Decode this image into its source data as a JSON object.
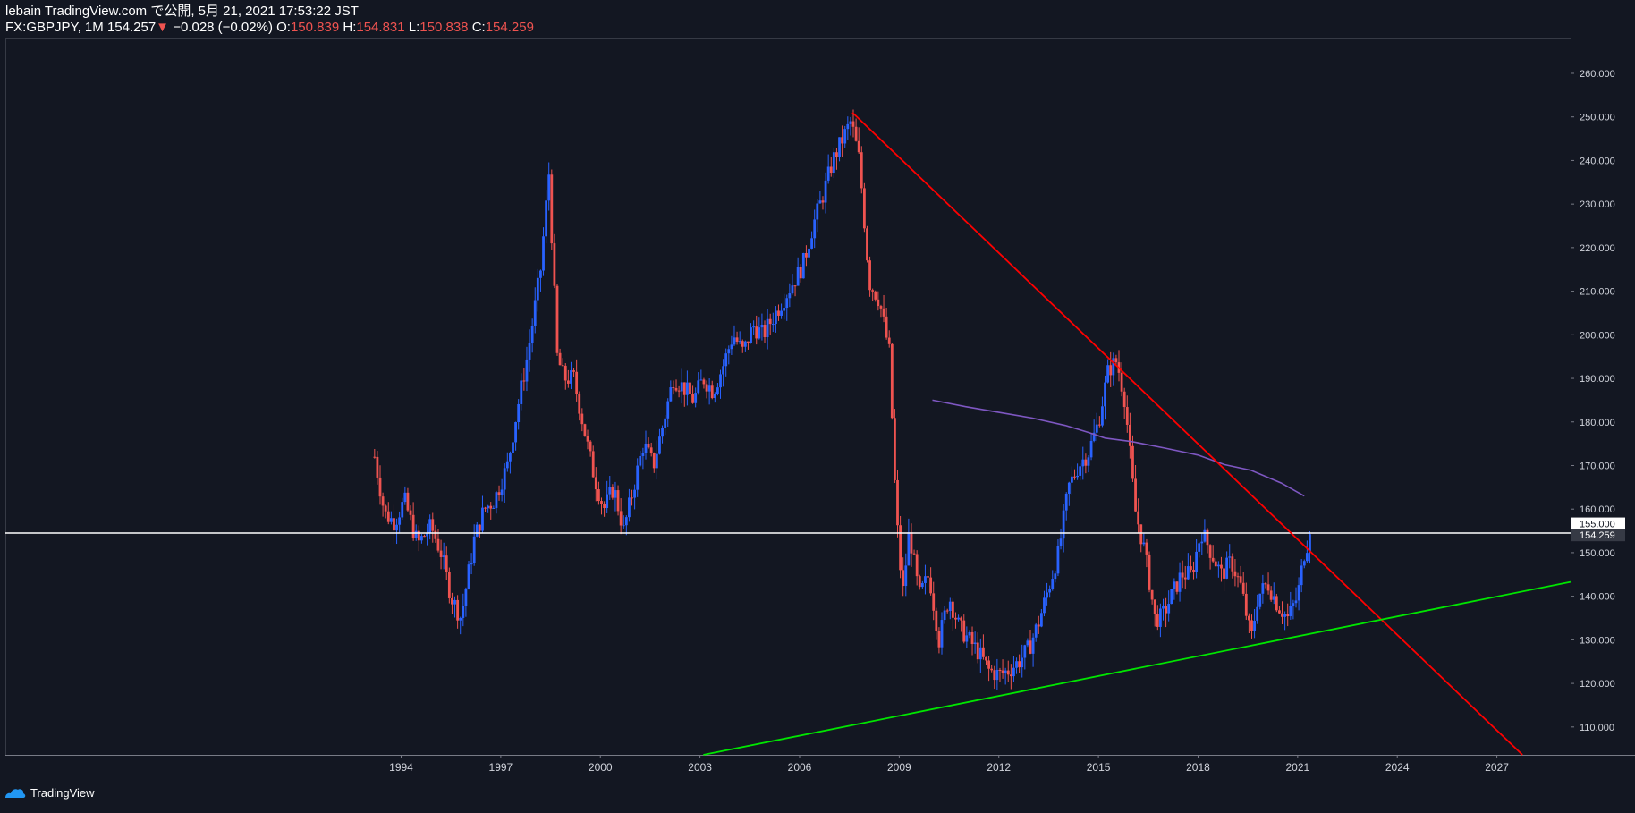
{
  "header": {
    "published": "lebain TradingView.com で公開, 5月 21, 2021 17:53:22 JST",
    "symbol": "FX:GBPJPY, 1M",
    "last_price": "154.257",
    "change_arrow": "▼",
    "change": "−0.028 (−0.02%)",
    "open_label": "O:",
    "open": "150.839",
    "high_label": "H:",
    "high": "154.831",
    "low_label": "L:",
    "low": "150.838",
    "close_label": "C:",
    "close": "154.259"
  },
  "footer": {
    "brand": "TradingView",
    "logo_icon": "tradingview-logo-icon"
  },
  "colors": {
    "background": "#131722",
    "up_candle": "#2962ff",
    "down_candle": "#ef5350",
    "resistance_line": "#ff0000",
    "support_line": "#00e600",
    "moving_average": "#7e57c2",
    "horizontal_line": "#ffffff"
  },
  "chart_data": {
    "type": "candlestick",
    "symbol": "FX:GBPJPY",
    "interval": "1M",
    "x_ticks": [
      "1994",
      "1997",
      "2000",
      "2003",
      "2006",
      "2009",
      "2012",
      "2015",
      "2018",
      "2021",
      "2024",
      "2027"
    ],
    "y_ticks": [
      "110.000",
      "120.000",
      "130.000",
      "140.000",
      "150.000",
      "160.000",
      "170.000",
      "180.000",
      "190.000",
      "200.000",
      "210.000",
      "220.000",
      "230.000",
      "240.000",
      "250.000",
      "260.000"
    ],
    "ylim": [
      103.6,
      268
    ],
    "xlim": [
      1982.08,
      2029.22
    ],
    "price_labels": [
      {
        "label": "155.000",
        "value": 155.0
      },
      {
        "label": "154.259",
        "value": 154.259
      }
    ],
    "horizontal_line": {
      "value": 154.5
    },
    "trendlines": [
      {
        "name": "resistance",
        "x1": 2007.59,
        "y1": 251.0,
        "x2": 2027.77,
        "y2": 103.6
      },
      {
        "name": "support",
        "x1": 2003.1,
        "y1": 103.6,
        "x2": 2029.22,
        "y2": 143.3
      }
    ],
    "moving_average": {
      "x": [
        2010.0,
        2011.0,
        2012.0,
        2013.0,
        2014.0,
        2014.7,
        2015.2,
        2016.0,
        2017.0,
        2018.0,
        2018.8,
        2019.6,
        2020.5,
        2021.2
      ],
      "y": [
        185.0,
        183.5,
        182.2,
        180.9,
        179.2,
        177.6,
        176.3,
        175.5,
        174.0,
        172.4,
        170.2,
        168.9,
        166.0,
        163.0
      ]
    },
    "series_close": {
      "x": [
        1993.2,
        1993.5,
        1993.8,
        1994.1,
        1994.5,
        1994.9,
        1995.2,
        1995.5,
        1995.8,
        1996.2,
        1996.5,
        1996.8,
        1997.2,
        1997.5,
        1997.8,
        1998.2,
        1998.45,
        1998.7,
        1998.9,
        1999.2,
        1999.6,
        1999.8,
        2000.1,
        2000.4,
        2000.7,
        2001.0,
        2001.3,
        2001.6,
        2001.9,
        2002.2,
        2002.5,
        2002.8,
        2003.1,
        2003.4,
        2003.7,
        2004.0,
        2004.3,
        2004.6,
        2004.9,
        2005.2,
        2005.5,
        2005.8,
        2006.1,
        2006.4,
        2006.7,
        2007.0,
        2007.3,
        2007.55,
        2007.8,
        2008.1,
        2008.4,
        2008.7,
        2008.9,
        2009.1,
        2009.3,
        2009.6,
        2009.9,
        2010.2,
        2010.5,
        2010.8,
        2011.1,
        2011.4,
        2011.7,
        2012.0,
        2012.3,
        2012.6,
        2012.9,
        2013.2,
        2013.5,
        2013.8,
        2014.1,
        2014.4,
        2014.7,
        2015.0,
        2015.3,
        2015.55,
        2015.8,
        2016.1,
        2016.4,
        2016.7,
        2016.9,
        2017.2,
        2017.5,
        2017.8,
        2018.1,
        2018.4,
        2018.7,
        2019.0,
        2019.3,
        2019.6,
        2019.8,
        2020.1,
        2020.4,
        2020.7,
        2021.0,
        2021.2,
        2021.38
      ],
      "y": [
        172,
        159,
        157,
        162,
        152,
        156,
        150,
        140,
        135,
        153,
        160,
        162,
        170,
        183,
        195,
        215,
        237,
        195,
        190,
        190,
        175,
        168,
        160,
        165,
        155,
        165,
        175,
        170,
        180,
        190,
        188,
        185,
        190,
        187,
        193,
        200,
        196,
        202,
        200,
        204,
        208,
        212,
        216,
        225,
        232,
        240,
        245,
        249,
        240,
        212,
        208,
        196,
        160,
        140,
        155,
        140,
        145,
        130,
        140,
        133,
        130,
        127,
        123,
        122,
        123,
        125,
        128,
        134,
        142,
        150,
        165,
        170,
        173,
        180,
        192,
        194,
        185,
        160,
        150,
        135,
        135,
        140,
        145,
        145,
        155,
        150,
        145,
        148,
        142,
        130,
        140,
        143,
        138,
        135,
        140,
        150,
        154.259
      ]
    }
  }
}
